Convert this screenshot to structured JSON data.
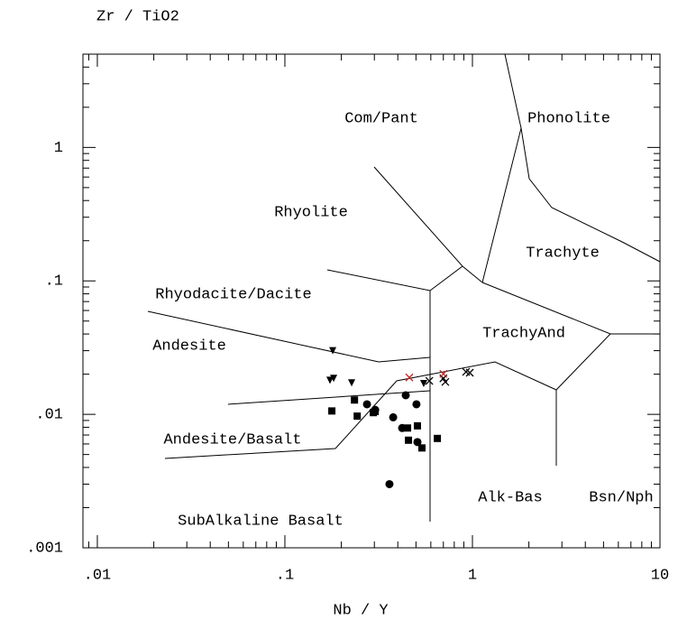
{
  "chart_data": {
    "type": "scatter",
    "xlabel": "Nb / Y",
    "ylabel": "Zr / TiO2",
    "log_x": true,
    "log_y": true,
    "xlim": [
      0.00838,
      10
    ],
    "ylim": [
      0.001,
      5
    ],
    "xticks": [
      {
        "value": 0.01,
        "label": ".01"
      },
      {
        "value": 0.1,
        "label": ".1"
      },
      1,
      10
    ],
    "yticks": [
      {
        "value": 0.001,
        "label": ".001"
      },
      {
        "value": 0.01,
        "label": ".01"
      },
      {
        "value": 0.1,
        "label": ".1"
      },
      1
    ],
    "annotations": [
      "Com/Pant",
      "Phonolite",
      "Rhyolite",
      "Trachyte",
      "Rhyodacite/Dacite",
      "Andesite",
      "TrachyAnd",
      "Andesite/Basalt",
      "Alk-Bas",
      "Bsn/Nph",
      "SubAlkaline Basalt"
    ],
    "series": [
      {
        "marker": "triangle",
        "color": "#000000",
        "x": [
          0.18,
          0.174,
          0.182,
          0.227,
          0.55
        ],
        "y": [
          0.03,
          0.018,
          0.0186,
          0.0172,
          0.017
        ]
      },
      {
        "marker": "square",
        "color": "#000000",
        "x": [
          0.178,
          0.235,
          0.243,
          0.296,
          0.303,
          0.451,
          0.456,
          0.509,
          0.538,
          0.65
        ],
        "y": [
          0.0106,
          0.0128,
          0.0097,
          0.0103,
          0.0105,
          0.0079,
          0.0064,
          0.0082,
          0.0056,
          0.0066
        ]
      },
      {
        "marker": "circle",
        "color": "#000000",
        "x": [
          0.274,
          0.303,
          0.441,
          0.378,
          0.422,
          0.503,
          0.509,
          0.361
        ],
        "y": [
          0.0119,
          0.0108,
          0.0139,
          0.0095,
          0.0079,
          0.0119,
          0.0062,
          0.003
        ]
      },
      {
        "marker": "cross",
        "color": "#000000",
        "x": [
          0.589,
          0.7,
          0.925,
          0.968,
          0.717
        ],
        "y": [
          0.0178,
          0.0186,
          0.0208,
          0.0205,
          0.0175
        ]
      },
      {
        "marker": "cross",
        "color": "#cc2222",
        "x": [
          0.461,
          0.7
        ],
        "y": [
          0.0189,
          0.0201
        ]
      }
    ]
  }
}
